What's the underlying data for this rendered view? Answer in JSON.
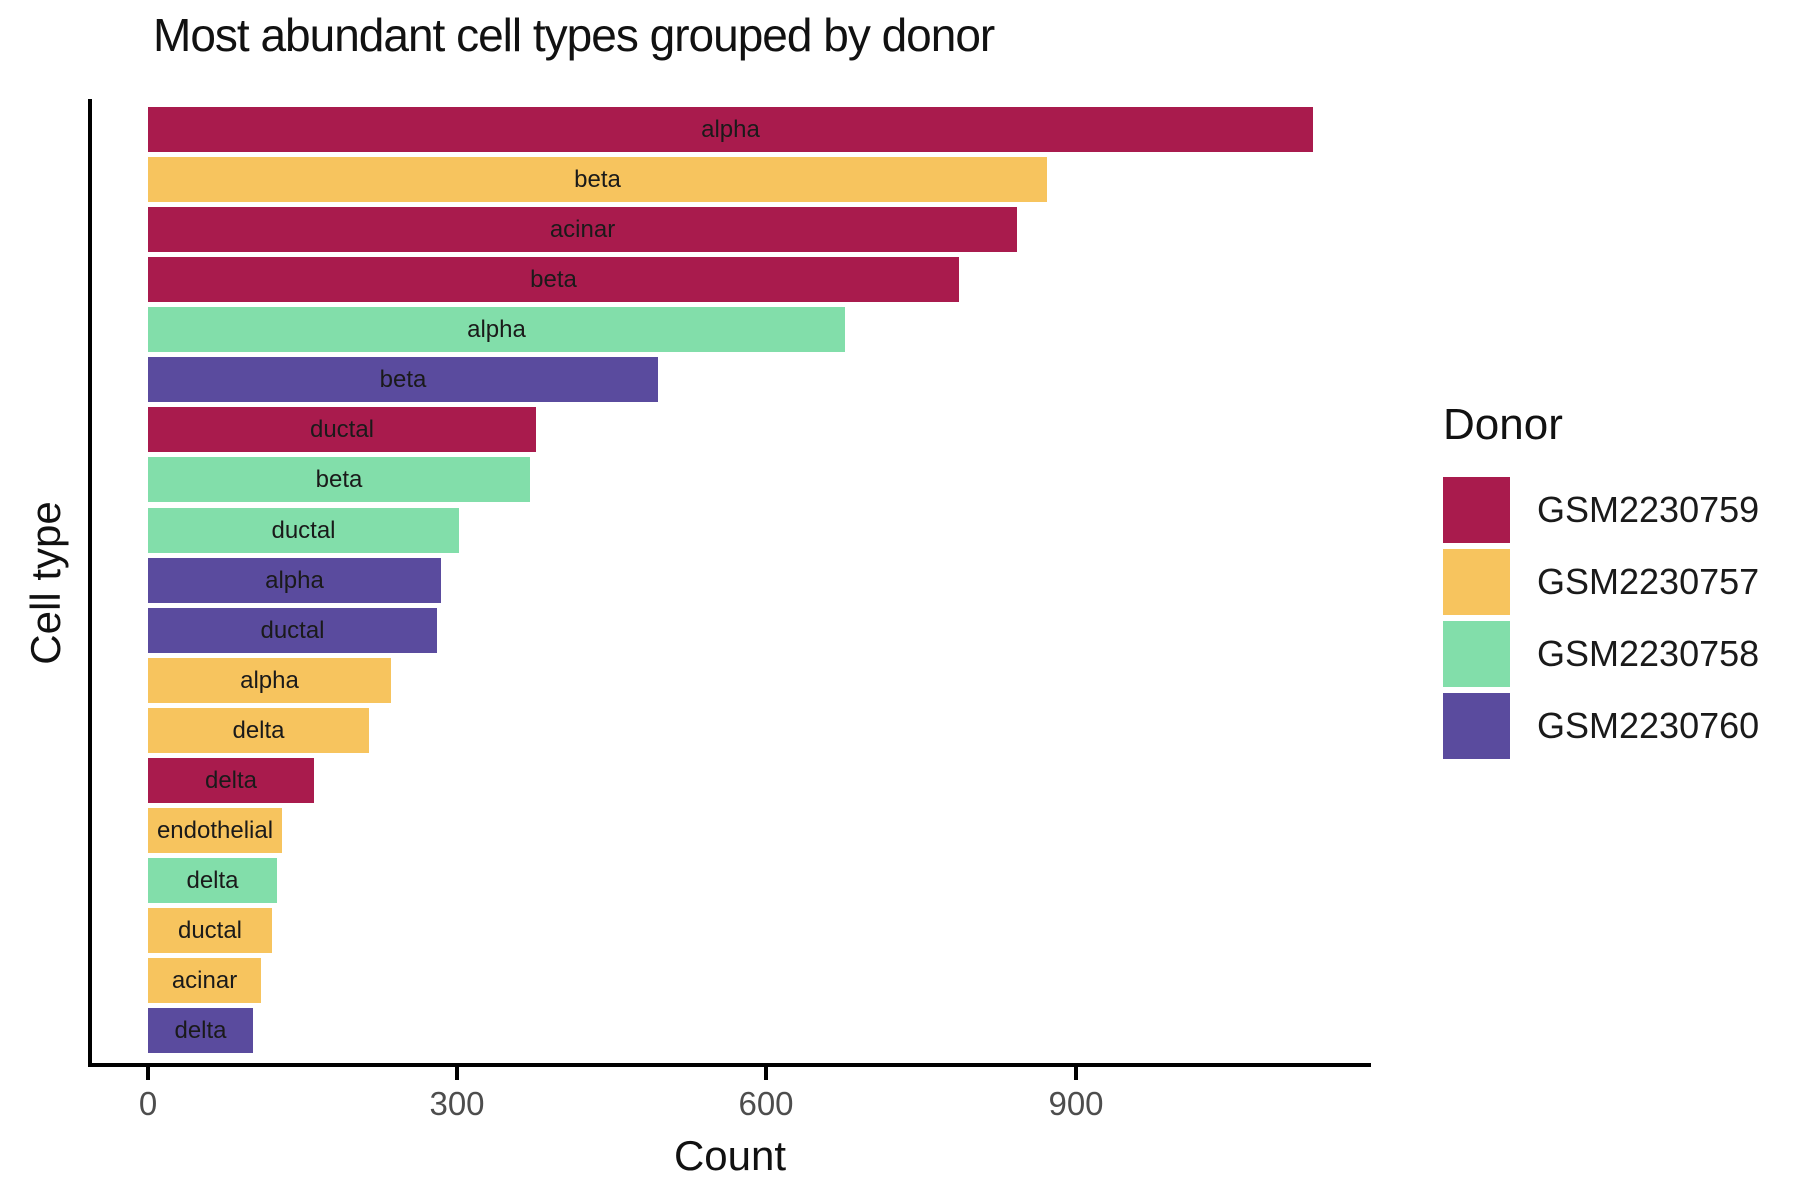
{
  "title": "Most abundant cell types grouped by donor",
  "axes": {
    "x_label": "Count",
    "y_label": "Cell type",
    "x_ticks": [
      0,
      300,
      600,
      900
    ]
  },
  "legend": {
    "title": "Donor",
    "entries": [
      {
        "label": "GSM2230759",
        "color": "#A91B4D"
      },
      {
        "label": "GSM2230757",
        "color": "#F7C45E"
      },
      {
        "label": "GSM2230758",
        "color": "#82DEAA"
      },
      {
        "label": "GSM2230760",
        "color": "#5A4B9E"
      }
    ]
  },
  "chart_data": {
    "type": "bar",
    "orientation": "horizontal",
    "title": "Most abundant cell types grouped by donor",
    "xlabel": "Count",
    "ylabel": "Cell type",
    "xlim": [
      0,
      1190
    ],
    "x_ticks": [
      0,
      300,
      600,
      900
    ],
    "grid": false,
    "legend_position": "right",
    "legend_title": "Donor",
    "bar_label_position": "centered-inside",
    "donor_colors": {
      "GSM2230759": "#A91B4D",
      "GSM2230757": "#F7C45E",
      "GSM2230758": "#82DEAA",
      "GSM2230760": "#5A4B9E"
    },
    "bars": [
      {
        "cell_type": "alpha",
        "donor": "GSM2230759",
        "count": 1130
      },
      {
        "cell_type": "beta",
        "donor": "GSM2230757",
        "count": 872
      },
      {
        "cell_type": "acinar",
        "donor": "GSM2230759",
        "count": 843
      },
      {
        "cell_type": "beta",
        "donor": "GSM2230759",
        "count": 787
      },
      {
        "cell_type": "alpha",
        "donor": "GSM2230758",
        "count": 676
      },
      {
        "cell_type": "beta",
        "donor": "GSM2230760",
        "count": 495
      },
      {
        "cell_type": "ductal",
        "donor": "GSM2230759",
        "count": 376
      },
      {
        "cell_type": "beta",
        "donor": "GSM2230758",
        "count": 371
      },
      {
        "cell_type": "ductal",
        "donor": "GSM2230758",
        "count": 302
      },
      {
        "cell_type": "alpha",
        "donor": "GSM2230760",
        "count": 284
      },
      {
        "cell_type": "ductal",
        "donor": "GSM2230760",
        "count": 280
      },
      {
        "cell_type": "alpha",
        "donor": "GSM2230757",
        "count": 236
      },
      {
        "cell_type": "delta",
        "donor": "GSM2230757",
        "count": 214
      },
      {
        "cell_type": "delta",
        "donor": "GSM2230759",
        "count": 161
      },
      {
        "cell_type": "endothelial",
        "donor": "GSM2230757",
        "count": 130
      },
      {
        "cell_type": "delta",
        "donor": "GSM2230758",
        "count": 125
      },
      {
        "cell_type": "ductal",
        "donor": "GSM2230757",
        "count": 120
      },
      {
        "cell_type": "acinar",
        "donor": "GSM2230757",
        "count": 110
      },
      {
        "cell_type": "delta",
        "donor": "GSM2230760",
        "count": 102
      }
    ]
  }
}
